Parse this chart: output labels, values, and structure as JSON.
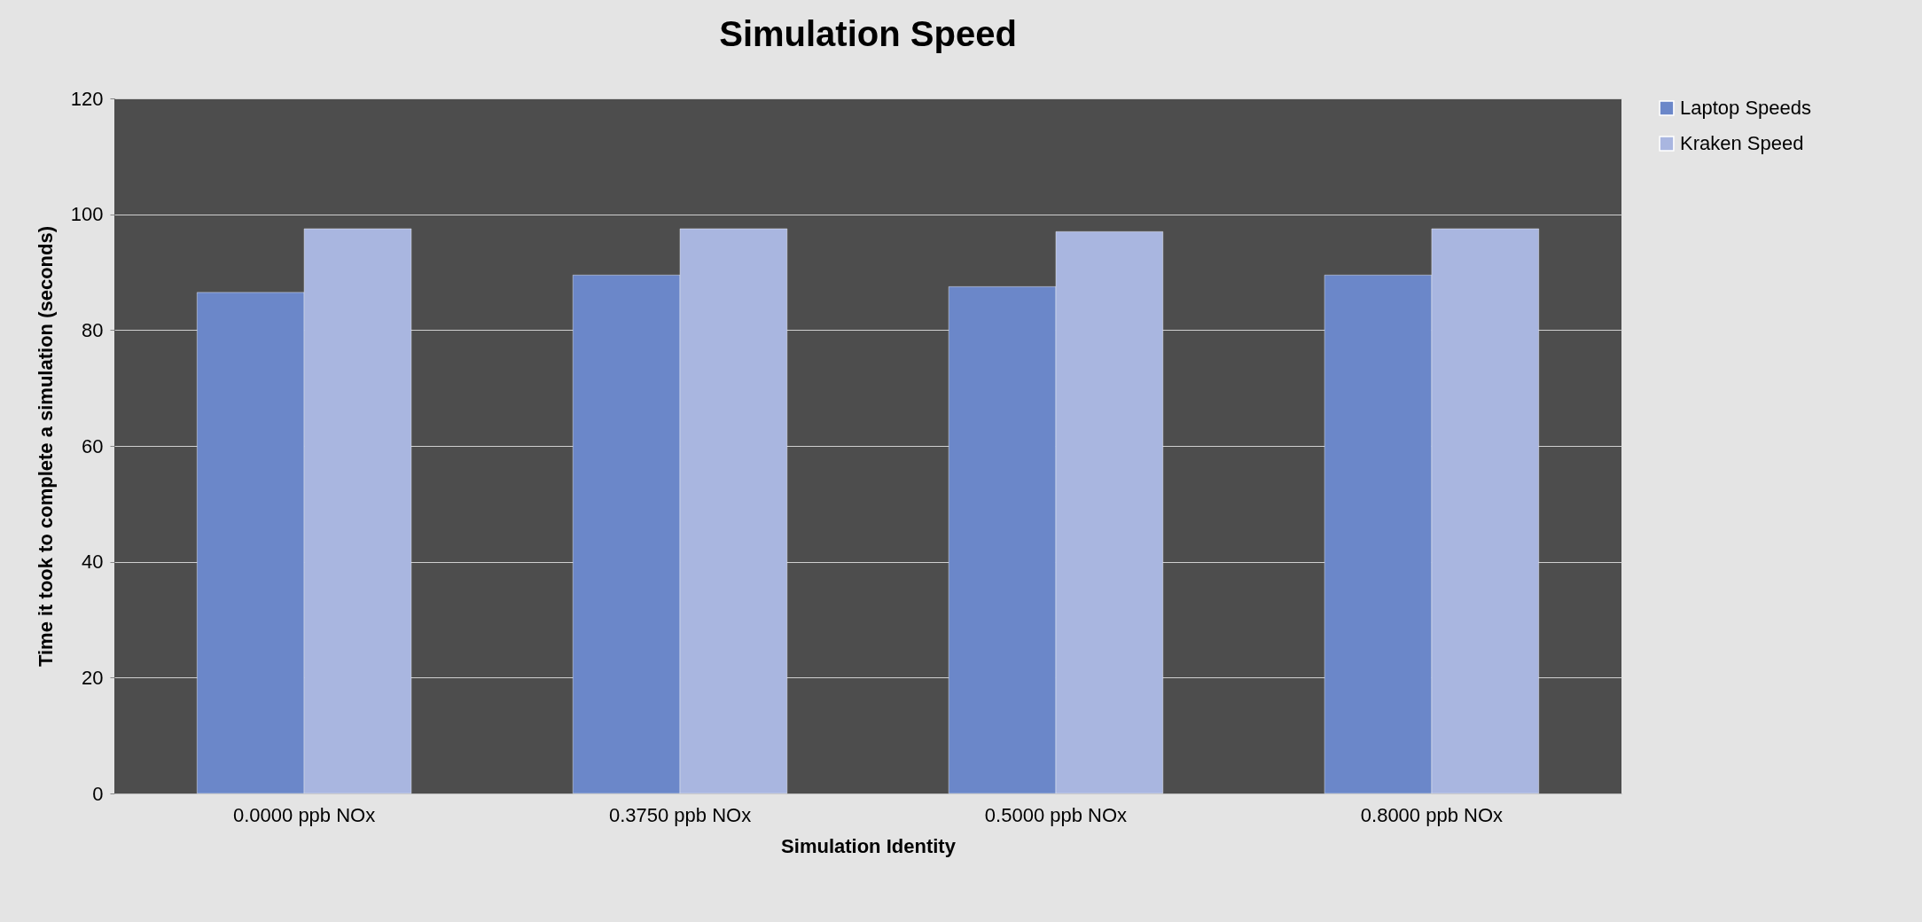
{
  "chart_data": {
    "type": "bar",
    "title": "Simulation Speed",
    "xlabel": "Simulation Identity",
    "ylabel": "Time it took to complete a simulation (seconds)",
    "categories": [
      "0.0000 ppb NOx",
      "0.3750 ppb NOx",
      "0.5000 ppb NOx",
      "0.8000 ppb NOx"
    ],
    "series": [
      {
        "name": "Laptop Speeds",
        "color": "#6b87c9",
        "values": [
          86.5,
          89.5,
          87.5,
          89.5
        ]
      },
      {
        "name": "Kraken Speed",
        "color": "#a9b6e0",
        "values": [
          97.5,
          97.5,
          97,
          97.5
        ]
      }
    ],
    "ylim": [
      0,
      120
    ],
    "yticks": [
      0,
      20,
      40,
      60,
      80,
      100,
      120
    ],
    "grid": "y",
    "legend": "right"
  }
}
